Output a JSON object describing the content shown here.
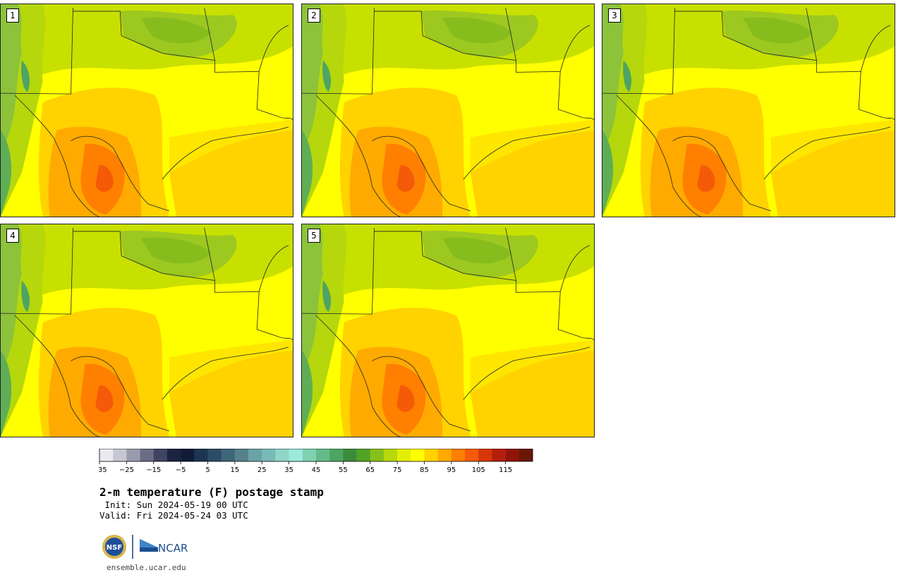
{
  "panels": [
    {
      "label": "1"
    },
    {
      "label": "2"
    },
    {
      "label": "3"
    },
    {
      "label": "4"
    },
    {
      "label": "5"
    }
  ],
  "colorbar": {
    "ticks": [
      "−35",
      "−25",
      "−15",
      "−5",
      "5",
      "15",
      "25",
      "35",
      "45",
      "55",
      "65",
      "75",
      "85",
      "95",
      "105",
      "115"
    ],
    "colors": [
      "#e9e9ef",
      "#c7c7d3",
      "#9a9aae",
      "#6b6c86",
      "#3e4462",
      "#1a2440",
      "#121c38",
      "#1d3552",
      "#2c4c66",
      "#3e6679",
      "#56818c",
      "#6aa3a6",
      "#79bab6",
      "#8fd6c8",
      "#9ceadc",
      "#7fd3b0",
      "#63bb89",
      "#4ea463",
      "#3b8c3a",
      "#52a325",
      "#86c01a",
      "#b7d80b",
      "#e2ee05",
      "#ffff00",
      "#ffd200",
      "#ffaa00",
      "#ff7f00",
      "#f45a08",
      "#d8360a",
      "#b41f0c",
      "#921409",
      "#6a1706"
    ]
  },
  "title": {
    "main": "2-m temperature (F) postage stamp",
    "init": " Init: Sun 2024-05-19 00 UTC",
    "valid": "Valid: Fri 2024-05-24 03 UTC"
  },
  "logos": {
    "nsf": "NSF",
    "ncar": "NCAR"
  },
  "footer": {
    "site": "ensemble.ucar.edu"
  }
}
